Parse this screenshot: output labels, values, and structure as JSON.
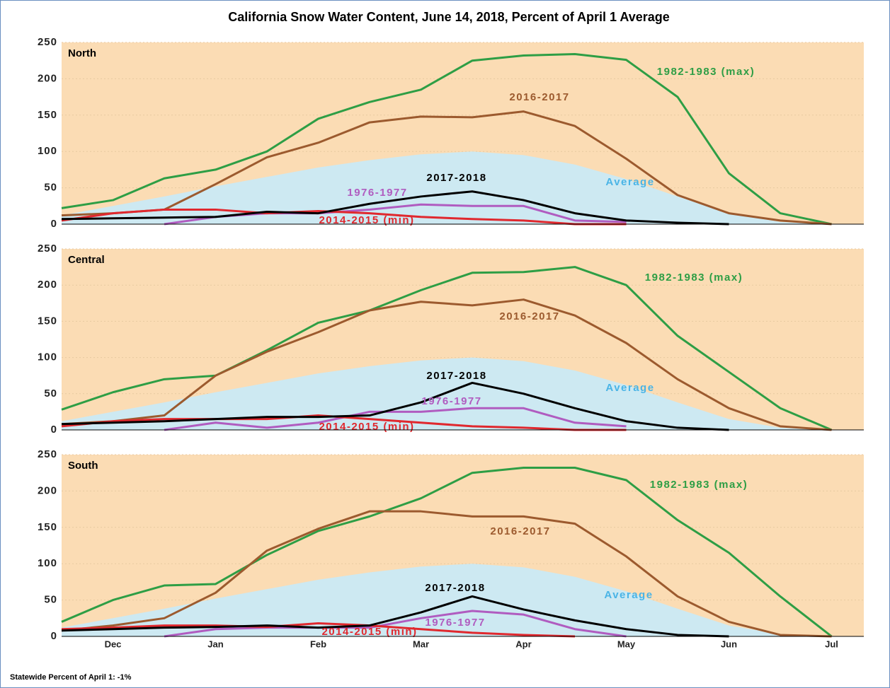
{
  "title": "California Snow Water Content, June 14, 2018, Percent of April 1 Average",
  "footer": "Statewide Percent of April 1: -1%",
  "chart_data": [
    {
      "type": "line",
      "title": "North",
      "categories": [
        null,
        "Dec",
        null,
        "Jan",
        null,
        "Feb",
        null,
        "Mar",
        null,
        "Apr",
        null,
        "May",
        null,
        "Jun",
        null,
        "Jul"
      ],
      "ylim": [
        0,
        250
      ],
      "yticks": [
        0,
        50,
        100,
        150,
        200,
        250
      ],
      "grid": true,
      "series": [
        {
          "name": "Average",
          "color": "#4ab4e6",
          "fill": "#cde9f2",
          "values": [
            12,
            25,
            38,
            52,
            65,
            78,
            88,
            96,
            100,
            95,
            82,
            62,
            38,
            15,
            3,
            0
          ]
        },
        {
          "name": "1982-1983 (max)",
          "color": "#2e9e45",
          "values": [
            22,
            33,
            63,
            75,
            100,
            145,
            168,
            185,
            225,
            232,
            234,
            226,
            175,
            70,
            15,
            0
          ]
        },
        {
          "name": "2016-2017",
          "color": "#9c5a2e",
          "values": [
            12,
            15,
            20,
            55,
            92,
            112,
            140,
            148,
            147,
            155,
            135,
            90,
            40,
            15,
            5,
            0
          ]
        },
        {
          "name": "1976-1977",
          "color": "#b05cc0",
          "values": [
            null,
            null,
            0,
            10,
            15,
            15,
            20,
            27,
            25,
            25,
            5,
            3,
            null,
            null,
            null,
            null
          ]
        },
        {
          "name": "2014-2015 (min)",
          "color": "#e0282e",
          "values": [
            5,
            15,
            20,
            20,
            15,
            18,
            15,
            10,
            7,
            5,
            0,
            0,
            null,
            null,
            null,
            null
          ]
        },
        {
          "name": "2017-2018",
          "color": "#000000",
          "values": [
            7,
            8,
            9,
            10,
            17,
            15,
            28,
            38,
            45,
            33,
            15,
            5,
            2,
            0,
            null,
            null
          ]
        }
      ]
    },
    {
      "type": "line",
      "title": "Central",
      "categories": [
        null,
        "Dec",
        null,
        "Jan",
        null,
        "Feb",
        null,
        "Mar",
        null,
        "Apr",
        null,
        "May",
        null,
        "Jun",
        null,
        "Jul"
      ],
      "ylim": [
        0,
        250
      ],
      "yticks": [
        0,
        50,
        100,
        150,
        200,
        250
      ],
      "grid": true,
      "series": [
        {
          "name": "Average",
          "color": "#4ab4e6",
          "fill": "#cde9f2",
          "values": [
            12,
            25,
            38,
            52,
            65,
            78,
            88,
            96,
            100,
            95,
            82,
            62,
            38,
            15,
            3,
            0
          ]
        },
        {
          "name": "1982-1983 (max)",
          "color": "#2e9e45",
          "values": [
            28,
            52,
            70,
            75,
            110,
            148,
            165,
            193,
            217,
            218,
            225,
            200,
            130,
            80,
            30,
            0
          ]
        },
        {
          "name": "2016-2017",
          "color": "#9c5a2e",
          "values": [
            8,
            12,
            20,
            75,
            108,
            135,
            165,
            177,
            172,
            180,
            158,
            120,
            70,
            30,
            5,
            0
          ]
        },
        {
          "name": "1976-1977",
          "color": "#b05cc0",
          "values": [
            null,
            null,
            0,
            10,
            3,
            10,
            25,
            25,
            30,
            30,
            10,
            5,
            null,
            null,
            null,
            null
          ]
        },
        {
          "name": "2014-2015 (min)",
          "color": "#e0282e",
          "values": [
            5,
            12,
            15,
            15,
            15,
            20,
            15,
            10,
            5,
            3,
            0,
            0,
            null,
            null,
            null,
            null
          ]
        },
        {
          "name": "2017-2018",
          "color": "#000000",
          "values": [
            8,
            10,
            12,
            15,
            18,
            18,
            20,
            38,
            65,
            50,
            30,
            12,
            3,
            0,
            null,
            null
          ]
        }
      ]
    },
    {
      "type": "line",
      "title": "South",
      "categories": [
        null,
        "Dec",
        null,
        "Jan",
        null,
        "Feb",
        null,
        "Mar",
        null,
        "Apr",
        null,
        "May",
        null,
        "Jun",
        null,
        "Jul"
      ],
      "ylim": [
        0,
        250
      ],
      "yticks": [
        0,
        50,
        100,
        150,
        200,
        250
      ],
      "grid": true,
      "series": [
        {
          "name": "Average",
          "color": "#4ab4e6",
          "fill": "#cde9f2",
          "values": [
            12,
            25,
            38,
            52,
            65,
            78,
            88,
            96,
            100,
            95,
            82,
            62,
            38,
            15,
            3,
            0
          ]
        },
        {
          "name": "1982-1983 (max)",
          "color": "#2e9e45",
          "values": [
            20,
            50,
            70,
            72,
            112,
            145,
            165,
            190,
            225,
            232,
            232,
            215,
            160,
            115,
            55,
            0
          ]
        },
        {
          "name": "2016-2017",
          "color": "#9c5a2e",
          "values": [
            8,
            15,
            25,
            60,
            118,
            148,
            172,
            172,
            165,
            165,
            155,
            110,
            55,
            20,
            2,
            0
          ]
        },
        {
          "name": "1976-1977",
          "color": "#b05cc0",
          "values": [
            null,
            null,
            0,
            10,
            12,
            12,
            12,
            25,
            35,
            30,
            10,
            0,
            null,
            null,
            null,
            null
          ]
        },
        {
          "name": "2014-2015 (min)",
          "color": "#e0282e",
          "values": [
            10,
            12,
            15,
            15,
            13,
            18,
            15,
            10,
            5,
            2,
            0,
            null,
            null,
            null,
            null,
            null
          ]
        },
        {
          "name": "2017-2018",
          "color": "#000000",
          "values": [
            8,
            10,
            12,
            13,
            15,
            12,
            15,
            33,
            55,
            37,
            22,
            10,
            2,
            0,
            null,
            null
          ]
        }
      ]
    }
  ]
}
